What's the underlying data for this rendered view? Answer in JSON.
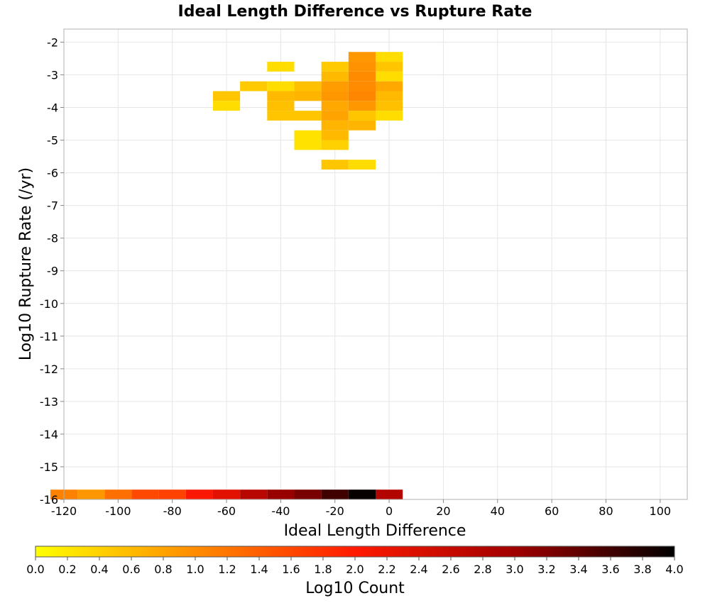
{
  "chart_data": {
    "type": "heatmap",
    "title": "Ideal Length Difference vs Rupture Rate",
    "xlabel": "Ideal Length Difference",
    "ylabel": "Log10 Rupture Rate (/yr)",
    "xlim": [
      -120,
      110
    ],
    "ylim": [
      -16,
      -1.6
    ],
    "x_ticks": [
      -120,
      -100,
      -80,
      -60,
      -40,
      -20,
      0,
      20,
      40,
      60,
      80,
      100
    ],
    "y_ticks": [
      -2,
      -3,
      -4,
      -5,
      -6,
      -7,
      -8,
      -9,
      -10,
      -11,
      -12,
      -13,
      -14,
      -15,
      -16
    ],
    "grid": true,
    "bin_width_x": 10,
    "bin_height_y": 0.3,
    "colorbar": {
      "label": "Log10 Count",
      "min": 0.0,
      "max": 4.0,
      "ticks": [
        "0.0",
        "0.2",
        "0.4",
        "0.6",
        "0.8",
        "1.0",
        "1.2",
        "1.4",
        "1.6",
        "1.8",
        "2.0",
        "2.2",
        "2.4",
        "2.6",
        "2.8",
        "3.0",
        "3.2",
        "3.4",
        "3.6",
        "3.8",
        "4.0"
      ],
      "colors": [
        "#ffff00",
        "#ff8c00",
        "#ff1a00",
        "#a00000",
        "#000000"
      ]
    },
    "cells": [
      {
        "x": -10,
        "y": -2.45,
        "v": 0.9
      },
      {
        "x": 0,
        "y": -2.45,
        "v": 0.3
      },
      {
        "x": -40,
        "y": -2.75,
        "v": 0.3
      },
      {
        "x": -20,
        "y": -2.75,
        "v": 0.45
      },
      {
        "x": -10,
        "y": -2.75,
        "v": 0.95
      },
      {
        "x": 0,
        "y": -2.75,
        "v": 0.5
      },
      {
        "x": -20,
        "y": -3.05,
        "v": 0.6
      },
      {
        "x": -10,
        "y": -3.05,
        "v": 1.0
      },
      {
        "x": 0,
        "y": -3.05,
        "v": 0.3
      },
      {
        "x": -50,
        "y": -3.35,
        "v": 0.45
      },
      {
        "x": -40,
        "y": -3.35,
        "v": 0.3
      },
      {
        "x": -30,
        "y": -3.35,
        "v": 0.55
      },
      {
        "x": -20,
        "y": -3.35,
        "v": 0.85
      },
      {
        "x": -10,
        "y": -3.35,
        "v": 1.0
      },
      {
        "x": 0,
        "y": -3.35,
        "v": 0.75
      },
      {
        "x": -60,
        "y": -3.65,
        "v": 0.5
      },
      {
        "x": -40,
        "y": -3.65,
        "v": 0.6
      },
      {
        "x": -30,
        "y": -3.65,
        "v": 0.65
      },
      {
        "x": -20,
        "y": -3.65,
        "v": 0.9
      },
      {
        "x": -10,
        "y": -3.65,
        "v": 1.05
      },
      {
        "x": 0,
        "y": -3.65,
        "v": 0.6
      },
      {
        "x": -60,
        "y": -3.95,
        "v": 0.3
      },
      {
        "x": -40,
        "y": -3.95,
        "v": 0.55
      },
      {
        "x": -20,
        "y": -3.95,
        "v": 0.75
      },
      {
        "x": -10,
        "y": -3.95,
        "v": 0.9
      },
      {
        "x": 0,
        "y": -3.95,
        "v": 0.55
      },
      {
        "x": -40,
        "y": -4.25,
        "v": 0.5
      },
      {
        "x": -30,
        "y": -4.25,
        "v": 0.5
      },
      {
        "x": -20,
        "y": -4.25,
        "v": 0.8
      },
      {
        "x": -10,
        "y": -4.25,
        "v": 0.5
      },
      {
        "x": 0,
        "y": -4.25,
        "v": 0.3
      },
      {
        "x": -20,
        "y": -4.55,
        "v": 0.65
      },
      {
        "x": -10,
        "y": -4.55,
        "v": 0.65
      },
      {
        "x": -30,
        "y": -4.85,
        "v": 0.25
      },
      {
        "x": -20,
        "y": -4.85,
        "v": 0.6
      },
      {
        "x": -30,
        "y": -5.15,
        "v": 0.25
      },
      {
        "x": -20,
        "y": -5.15,
        "v": 0.4
      },
      {
        "x": -20,
        "y": -5.75,
        "v": 0.5
      },
      {
        "x": -10,
        "y": -5.75,
        "v": 0.3
      },
      {
        "x": -120,
        "y": -15.85,
        "v": 1.1
      },
      {
        "x": -110,
        "y": -15.85,
        "v": 0.9
      },
      {
        "x": -100,
        "y": -15.85,
        "v": 1.25
      },
      {
        "x": -90,
        "y": -15.85,
        "v": 1.6
      },
      {
        "x": -80,
        "y": -15.85,
        "v": 1.65
      },
      {
        "x": -70,
        "y": -15.85,
        "v": 2.05
      },
      {
        "x": -60,
        "y": -15.85,
        "v": 2.3
      },
      {
        "x": -50,
        "y": -15.85,
        "v": 2.75
      },
      {
        "x": -40,
        "y": -15.85,
        "v": 3.05
      },
      {
        "x": -30,
        "y": -15.85,
        "v": 3.25
      },
      {
        "x": -20,
        "y": -15.85,
        "v": 3.6
      },
      {
        "x": -10,
        "y": -15.85,
        "v": 3.95
      },
      {
        "x": 0,
        "y": -15.85,
        "v": 2.8
      }
    ]
  }
}
